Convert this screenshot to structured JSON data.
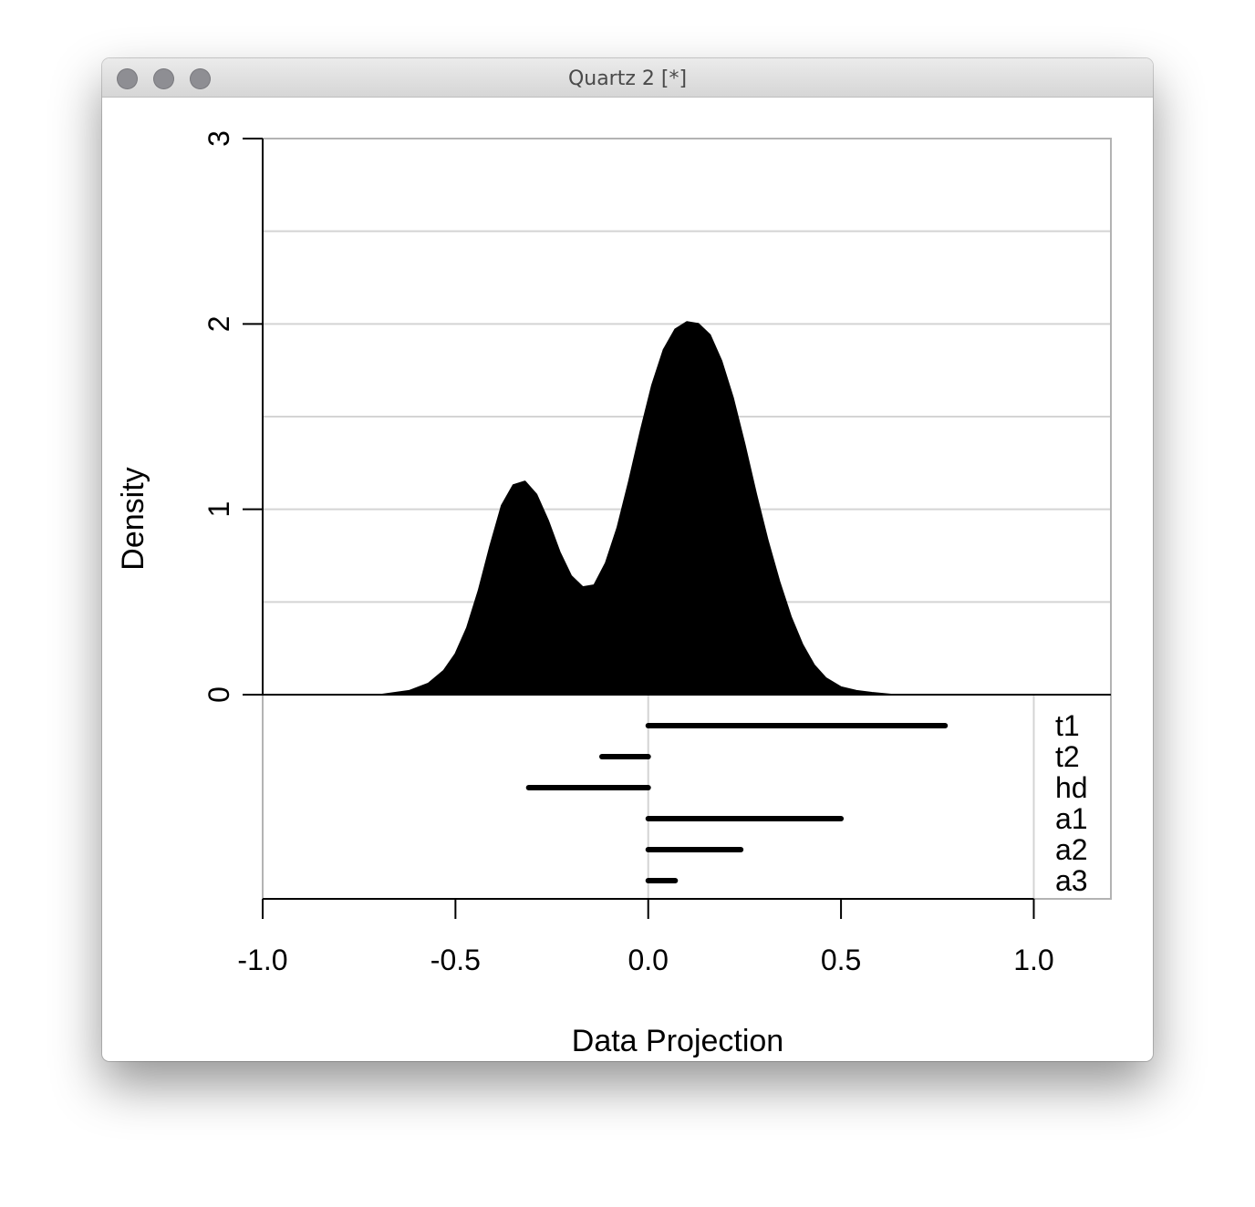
{
  "window": {
    "title": "Quartz 2 [*]"
  },
  "chart_data": {
    "type": "area",
    "title": "",
    "xlabel": "Data Projection",
    "ylabel": "Density",
    "xlim": [
      -1.0,
      1.2
    ],
    "ylim": [
      0,
      3
    ],
    "x_ticks": [
      -1.0,
      -0.5,
      0.0,
      0.5,
      1.0
    ],
    "x_tick_labels": [
      "-1.0",
      "-0.5",
      "0.0",
      "0.5",
      "1.0"
    ],
    "y_ticks": [
      0,
      1,
      2,
      3
    ],
    "y_tick_labels": [
      "0",
      "1",
      "2",
      "3"
    ],
    "y_gridlines": [
      0.5,
      1.0,
      1.5,
      2.0,
      2.5
    ],
    "grid": true,
    "density_curve": {
      "x": [
        -0.69,
        -0.62,
        -0.57,
        -0.53,
        -0.5,
        -0.47,
        -0.44,
        -0.41,
        -0.38,
        -0.35,
        -0.32,
        -0.29,
        -0.26,
        -0.23,
        -0.2,
        -0.17,
        -0.14,
        -0.11,
        -0.08,
        -0.05,
        -0.02,
        0.01,
        0.04,
        0.07,
        0.1,
        0.13,
        0.16,
        0.19,
        0.22,
        0.25,
        0.28,
        0.31,
        0.34,
        0.37,
        0.4,
        0.43,
        0.46,
        0.5,
        0.54,
        0.58,
        0.63
      ],
      "y": [
        0.0,
        0.02,
        0.06,
        0.13,
        0.22,
        0.36,
        0.56,
        0.8,
        1.02,
        1.13,
        1.15,
        1.08,
        0.94,
        0.77,
        0.64,
        0.58,
        0.59,
        0.71,
        0.9,
        1.15,
        1.42,
        1.67,
        1.86,
        1.97,
        2.01,
        2.0,
        1.94,
        1.8,
        1.6,
        1.35,
        1.08,
        0.83,
        0.61,
        0.42,
        0.27,
        0.16,
        0.09,
        0.04,
        0.02,
        0.01,
        0.0
      ]
    },
    "segments": {
      "labels": [
        "t1",
        "t2",
        "hd",
        "a1",
        "a2",
        "a3"
      ],
      "values": [
        0.77,
        -0.12,
        -0.31,
        0.5,
        0.24,
        0.07
      ],
      "reference_lines": [
        0.0,
        1.0
      ]
    },
    "colors": {
      "fill": "#000000",
      "grid": "#d4d4d4",
      "frame": "#b3b3b3"
    }
  }
}
